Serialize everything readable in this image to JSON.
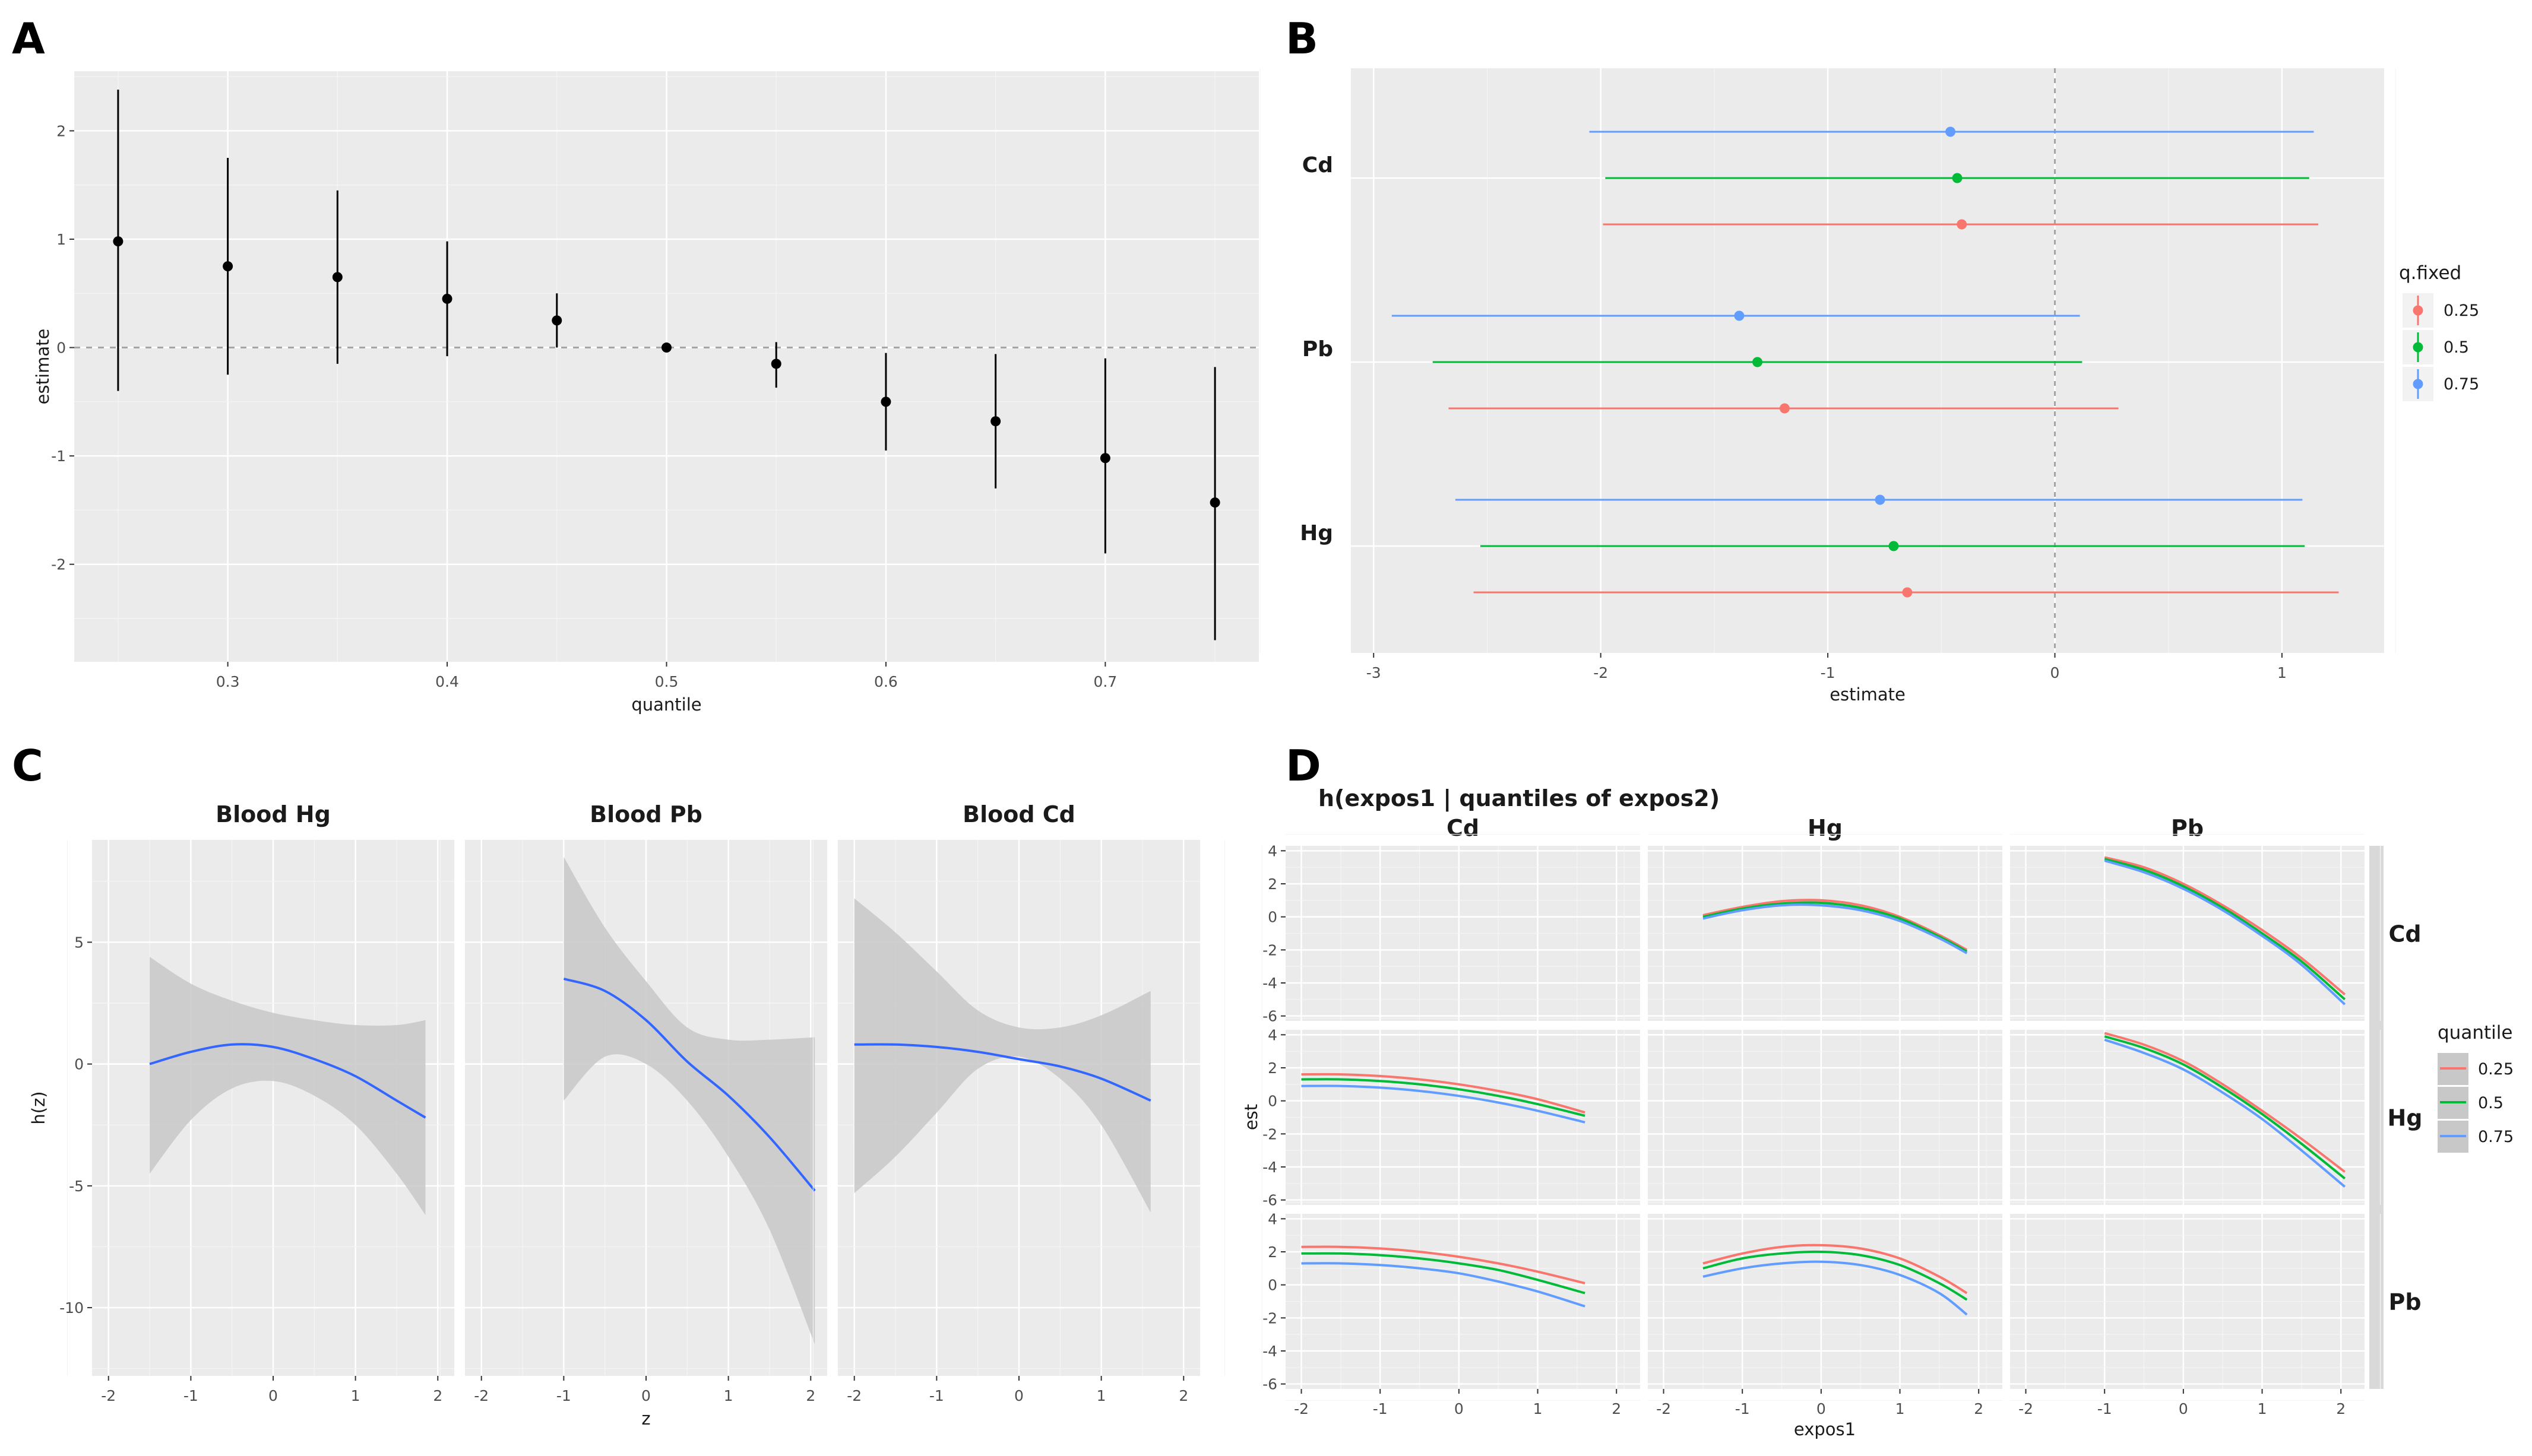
{
  "colors": {
    "q025": "#f8766d",
    "q05": "#00ba38",
    "q075": "#619cff",
    "smooth": "#3366ff",
    "ribbon": "#c8c8c8",
    "point": "#000000",
    "strip_bg": "#d9d9d9"
  },
  "chart_data": [
    {
      "id": "A",
      "panel_label": "A",
      "type": "scatter",
      "xlabel": "quantile",
      "ylabel": "estimate",
      "xlim": [
        0.23,
        0.77
      ],
      "ylim": [
        -2.9,
        2.55
      ],
      "xticks": [
        0.3,
        0.4,
        0.5,
        0.6,
        0.7
      ],
      "xtick_labels": [
        "0.3",
        "0.4",
        "0.5",
        "0.6",
        "0.7"
      ],
      "yticks": [
        -2,
        -1,
        0,
        1,
        2
      ],
      "ytick_labels": [
        "-2",
        "-1",
        "0",
        "1",
        "2"
      ],
      "hline": 0,
      "points": [
        {
          "x": 0.25,
          "y": 0.98,
          "lo": -0.4,
          "hi": 2.38
        },
        {
          "x": 0.3,
          "y": 0.75,
          "lo": -0.25,
          "hi": 1.75
        },
        {
          "x": 0.35,
          "y": 0.65,
          "lo": -0.15,
          "hi": 1.45
        },
        {
          "x": 0.4,
          "y": 0.45,
          "lo": -0.08,
          "hi": 0.98
        },
        {
          "x": 0.45,
          "y": 0.25,
          "lo": 0.0,
          "hi": 0.5
        },
        {
          "x": 0.5,
          "y": 0.0,
          "lo": 0.0,
          "hi": 0.0
        },
        {
          "x": 0.55,
          "y": -0.15,
          "lo": -0.37,
          "hi": 0.05
        },
        {
          "x": 0.6,
          "y": -0.5,
          "lo": -0.95,
          "hi": -0.05
        },
        {
          "x": 0.65,
          "y": -0.68,
          "lo": -1.3,
          "hi": -0.06
        },
        {
          "x": 0.7,
          "y": -1.02,
          "lo": -1.9,
          "hi": -0.1
        },
        {
          "x": 0.75,
          "y": -1.43,
          "lo": -2.7,
          "hi": -0.18
        }
      ]
    },
    {
      "id": "B",
      "panel_label": "B",
      "type": "scatter",
      "xlabel": "estimate",
      "ylabel": "",
      "xlim": [
        -3.1,
        1.45
      ],
      "xticks": [
        -3,
        -2,
        -1,
        0,
        1
      ],
      "xtick_labels": [
        "-3",
        "-2",
        "-1",
        "0",
        "1"
      ],
      "vline": 0,
      "categories": [
        "Cd",
        "Pb",
        "Hg"
      ],
      "legend": {
        "title": "q.fixed",
        "entries": [
          "0.25",
          "0.5",
          "0.75"
        ]
      },
      "series": [
        {
          "name": "0.25",
          "values": [
            {
              "cat": "Cd",
              "est": -0.41,
              "lo": -1.99,
              "hi": 1.16
            },
            {
              "cat": "Pb",
              "est": -1.19,
              "lo": -2.67,
              "hi": 0.28
            },
            {
              "cat": "Hg",
              "est": -0.65,
              "lo": -2.56,
              "hi": 1.25
            }
          ]
        },
        {
          "name": "0.5",
          "values": [
            {
              "cat": "Cd",
              "est": -0.43,
              "lo": -1.98,
              "hi": 1.12
            },
            {
              "cat": "Pb",
              "est": -1.31,
              "lo": -2.74,
              "hi": 0.12
            },
            {
              "cat": "Hg",
              "est": -0.71,
              "lo": -2.53,
              "hi": 1.1
            }
          ]
        },
        {
          "name": "0.75",
          "values": [
            {
              "cat": "Cd",
              "est": -0.46,
              "lo": -2.05,
              "hi": 1.14
            },
            {
              "cat": "Pb",
              "est": -1.39,
              "lo": -2.92,
              "hi": 0.11
            },
            {
              "cat": "Hg",
              "est": -0.77,
              "lo": -2.64,
              "hi": 1.09
            }
          ]
        }
      ]
    },
    {
      "id": "C",
      "panel_label": "C",
      "type": "line",
      "xlabel": "z",
      "ylabel": "h(z)",
      "xlim": [
        -2.2,
        2.2
      ],
      "ylim": [
        -12.8,
        9.2
      ],
      "xticks": [
        -2,
        -1,
        0,
        1,
        2
      ],
      "xtick_labels": [
        "-2",
        "-1",
        "0",
        "1",
        "2"
      ],
      "yticks": [
        -10,
        -5,
        0,
        5
      ],
      "ytick_labels": [
        "-10",
        "-5",
        "0",
        "5"
      ],
      "facets": [
        {
          "title": "Blood  Hg",
          "x": [
            -1.5,
            -1.0,
            -0.5,
            0.0,
            0.5,
            1.0,
            1.5,
            1.85
          ],
          "y": [
            0.0,
            0.5,
            0.8,
            0.7,
            0.2,
            -0.5,
            -1.5,
            -2.2
          ],
          "lo": [
            -4.5,
            -2.3,
            -1.0,
            -0.7,
            -1.3,
            -2.5,
            -4.5,
            -6.2
          ],
          "hi": [
            4.4,
            3.3,
            2.6,
            2.1,
            1.8,
            1.6,
            1.6,
            1.8
          ]
        },
        {
          "title": "Blood  Pb",
          "x": [
            -1.0,
            -0.5,
            0.0,
            0.5,
            1.0,
            1.5,
            2.05
          ],
          "y": [
            3.5,
            3.0,
            1.8,
            0.1,
            -1.3,
            -3.0,
            -5.2
          ],
          "lo": [
            -1.5,
            0.3,
            0.0,
            -1.5,
            -3.8,
            -6.8,
            -11.5
          ],
          "hi": [
            8.5,
            5.6,
            3.4,
            1.5,
            1.0,
            1.0,
            1.1
          ]
        },
        {
          "title": "Blood  Cd",
          "x": [
            -2.0,
            -1.5,
            -1.0,
            -0.5,
            0.0,
            0.5,
            1.0,
            1.6
          ],
          "y": [
            0.8,
            0.8,
            0.7,
            0.5,
            0.2,
            -0.1,
            -0.6,
            -1.5
          ],
          "lo": [
            -5.3,
            -3.8,
            -2.0,
            -0.2,
            0.3,
            -0.6,
            -2.5,
            -6.1
          ],
          "hi": [
            6.8,
            5.4,
            3.8,
            2.2,
            1.5,
            1.5,
            2.0,
            3.0
          ]
        }
      ]
    },
    {
      "id": "D",
      "panel_label": "D",
      "type": "line",
      "title": "h(expos1 | quantiles of expos2)",
      "xlabel": "expos1",
      "ylabel": "est",
      "xlim": [
        -2.2,
        2.3
      ],
      "ylim": [
        -6.3,
        4.3
      ],
      "xticks": [
        -2,
        -1,
        0,
        1,
        2
      ],
      "xtick_labels": [
        "-2",
        "-1",
        "0",
        "1",
        "2"
      ],
      "yticks": [
        -6,
        -4,
        -2,
        0,
        2,
        4
      ],
      "ytick_labels": [
        "-6",
        "-4",
        "-2",
        "0",
        "2",
        "4"
      ],
      "col_strips": [
        "Cd",
        "Hg",
        "Pb"
      ],
      "row_strips": [
        "Cd",
        "Hg",
        "Pb"
      ],
      "legend": {
        "title": "quantile",
        "entries": [
          "0.25",
          "0.5",
          "0.75"
        ]
      },
      "cells": [
        {
          "row": 0,
          "col": 1,
          "x": [
            -1.5,
            -1.0,
            -0.5,
            0.0,
            0.5,
            1.0,
            1.5,
            1.85
          ],
          "series": [
            [
              0.1,
              0.6,
              0.95,
              1.0,
              0.7,
              0.0,
              -1.1,
              -2.0
            ],
            [
              0.0,
              0.5,
              0.8,
              0.85,
              0.55,
              -0.1,
              -1.2,
              -2.1
            ],
            [
              -0.1,
              0.4,
              0.7,
              0.7,
              0.4,
              -0.25,
              -1.3,
              -2.2
            ]
          ]
        },
        {
          "row": 0,
          "col": 2,
          "x": [
            -1.0,
            -0.5,
            0.0,
            0.5,
            1.0,
            1.5,
            2.05
          ],
          "series": [
            [
              3.6,
              3.0,
              2.0,
              0.7,
              -0.8,
              -2.5,
              -4.7
            ],
            [
              3.5,
              2.85,
              1.85,
              0.55,
              -1.0,
              -2.7,
              -5.0
            ],
            [
              3.4,
              2.7,
              1.7,
              0.4,
              -1.15,
              -2.9,
              -5.3
            ]
          ]
        },
        {
          "row": 1,
          "col": 0,
          "x": [
            -2.0,
            -1.5,
            -1.0,
            -0.5,
            0.0,
            0.5,
            1.0,
            1.6
          ],
          "series": [
            [
              1.6,
              1.6,
              1.5,
              1.3,
              1.0,
              0.6,
              0.1,
              -0.7
            ],
            [
              1.3,
              1.3,
              1.2,
              1.0,
              0.7,
              0.3,
              -0.2,
              -0.9
            ],
            [
              0.9,
              0.9,
              0.8,
              0.6,
              0.3,
              -0.1,
              -0.6,
              -1.3
            ]
          ]
        },
        {
          "row": 1,
          "col": 2,
          "x": [
            -1.0,
            -0.5,
            0.0,
            0.5,
            1.0,
            1.5,
            2.05
          ],
          "series": [
            [
              4.1,
              3.4,
              2.4,
              1.0,
              -0.6,
              -2.3,
              -4.3
            ],
            [
              3.9,
              3.2,
              2.2,
              0.8,
              -0.8,
              -2.6,
              -4.7
            ],
            [
              3.7,
              2.9,
              1.9,
              0.5,
              -1.1,
              -3.0,
              -5.2
            ]
          ]
        },
        {
          "row": 2,
          "col": 0,
          "x": [
            -2.0,
            -1.5,
            -1.0,
            -0.5,
            0.0,
            0.5,
            1.0,
            1.6
          ],
          "series": [
            [
              2.3,
              2.3,
              2.2,
              2.0,
              1.7,
              1.3,
              0.8,
              0.1
            ],
            [
              1.9,
              1.9,
              1.8,
              1.6,
              1.3,
              0.9,
              0.3,
              -0.5
            ],
            [
              1.3,
              1.3,
              1.2,
              1.0,
              0.7,
              0.2,
              -0.4,
              -1.3
            ]
          ]
        },
        {
          "row": 2,
          "col": 1,
          "x": [
            -1.5,
            -1.0,
            -0.5,
            0.0,
            0.5,
            1.0,
            1.5,
            1.85
          ],
          "series": [
            [
              1.3,
              1.9,
              2.3,
              2.4,
              2.2,
              1.6,
              0.5,
              -0.5
            ],
            [
              1.0,
              1.6,
              1.9,
              2.0,
              1.8,
              1.2,
              0.1,
              -0.9
            ],
            [
              0.5,
              1.0,
              1.3,
              1.4,
              1.2,
              0.6,
              -0.5,
              -1.8
            ]
          ]
        }
      ]
    }
  ]
}
